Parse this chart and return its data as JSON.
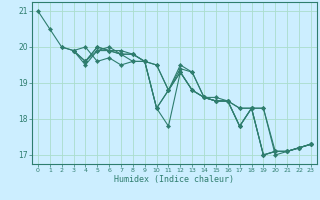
{
  "xlabel": "Humidex (Indice chaleur)",
  "bg_color": "#cceeff",
  "grid_color": "#aaddcc",
  "line_color": "#2e7d6e",
  "marker_color": "#2e7d6e",
  "xlim": [
    -0.5,
    23.5
  ],
  "ylim": [
    16.75,
    21.25
  ],
  "yticks": [
    17,
    18,
    19,
    20,
    21
  ],
  "xticks": [
    0,
    1,
    2,
    3,
    4,
    5,
    6,
    7,
    8,
    9,
    10,
    11,
    12,
    13,
    14,
    15,
    16,
    17,
    18,
    19,
    20,
    21,
    22,
    23
  ],
  "series": [
    {
      "x": [
        0,
        1,
        2,
        3,
        4,
        5,
        6,
        7,
        8,
        9,
        10,
        11,
        12,
        13,
        14,
        15,
        16,
        17,
        18,
        19,
        20,
        21,
        22,
        23
      ],
      "y": [
        21.0,
        20.5,
        20.0,
        19.9,
        20.0,
        19.6,
        19.7,
        19.5,
        19.6,
        19.6,
        18.3,
        18.8,
        19.3,
        18.8,
        18.6,
        18.5,
        18.5,
        17.8,
        18.3,
        17.0,
        17.1,
        17.1,
        17.2,
        17.3
      ]
    },
    {
      "x": [
        2,
        3,
        4,
        5,
        6,
        7,
        8,
        9,
        10,
        11,
        12,
        13,
        14,
        15,
        16,
        17,
        18,
        19,
        20,
        21,
        22,
        23
      ],
      "y": [
        20.0,
        19.9,
        19.5,
        19.9,
        19.9,
        19.8,
        19.8,
        19.6,
        19.5,
        18.8,
        19.5,
        19.3,
        18.6,
        18.6,
        18.5,
        18.3,
        18.3,
        18.3,
        17.0,
        17.1,
        17.2,
        17.3
      ]
    },
    {
      "x": [
        3,
        4,
        5,
        6,
        7,
        8,
        9,
        10,
        11,
        12,
        13,
        14,
        15,
        16,
        17,
        18,
        19,
        20,
        21,
        22,
        23
      ],
      "y": [
        19.9,
        19.6,
        19.9,
        20.0,
        19.8,
        19.8,
        19.6,
        19.5,
        18.8,
        19.4,
        19.3,
        18.6,
        18.5,
        18.5,
        18.3,
        18.3,
        18.3,
        17.1,
        17.1,
        17.2,
        17.3
      ]
    },
    {
      "x": [
        3,
        4,
        5,
        6,
        7,
        8,
        9,
        10,
        11,
        12,
        13,
        14,
        15,
        16,
        17,
        18,
        19,
        20,
        21,
        22,
        23
      ],
      "y": [
        19.9,
        19.6,
        20.0,
        19.9,
        19.9,
        19.8,
        19.6,
        18.3,
        17.8,
        19.3,
        18.8,
        18.6,
        18.5,
        18.5,
        17.8,
        18.3,
        17.0,
        17.1,
        17.1,
        17.2,
        17.3
      ]
    },
    {
      "x": [
        4,
        5,
        6,
        7,
        8,
        9,
        10,
        11,
        12,
        13,
        14,
        15,
        16,
        17,
        18,
        19,
        20,
        21,
        22,
        23
      ],
      "y": [
        19.6,
        20.0,
        19.9,
        19.8,
        19.6,
        19.6,
        18.3,
        18.8,
        19.3,
        18.8,
        18.6,
        18.5,
        18.5,
        17.8,
        18.3,
        17.0,
        17.1,
        17.1,
        17.2,
        17.3
      ]
    }
  ]
}
